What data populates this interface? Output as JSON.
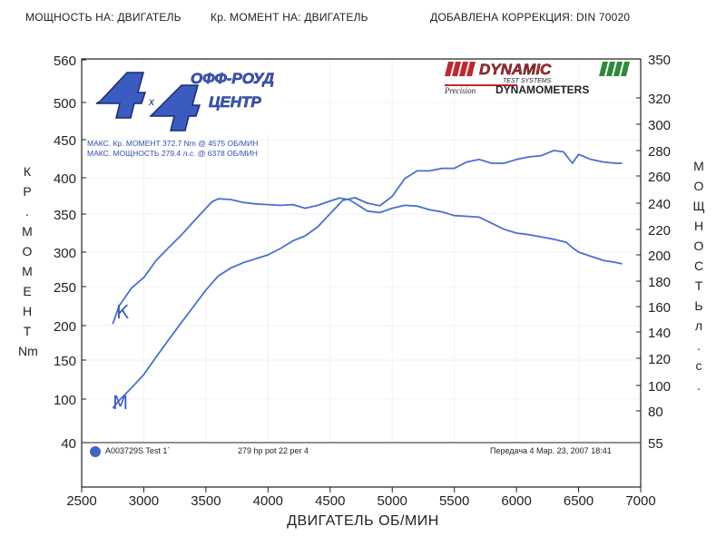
{
  "header": {
    "power_on": "МОЩНОСТЬ НА: ДВИГАТЕЛЬ",
    "torque_on": "Кр. МОМЕНТ НА: ДВИГАТЕЛЬ",
    "correction": "ДОБАВЛЕНА КОРРЕКЦИЯ: DIN 70020"
  },
  "logo_left": {
    "text_top": "ОФФ-РОУД",
    "text_bottom": "ЦЕНТР",
    "big_digit": "4",
    "cross": "x"
  },
  "logo_right": {
    "brand": "DYNAMIC",
    "sub": "TEST SYSTEMS",
    "precision": "Precision",
    "product": "DYNAMOMETERS"
  },
  "max_info": {
    "torque": "МАКС. Кр. МОМЕНТ 372.7 Nm @ 4575 ОБ/МИН",
    "power": "МАКС. МОЩНОСТЬ 279.4 л.с. @ 6378 ОБ/МИН"
  },
  "labels": {
    "y_left": [
      "К",
      "Р",
      ".",
      "М",
      "О",
      "М",
      "Е",
      "Н",
      "Т",
      "Nm"
    ],
    "y_right": [
      "М",
      "О",
      "Щ",
      "Н",
      "О",
      "С",
      "Т",
      "Ь",
      "л",
      ".",
      "с",
      "."
    ],
    "x_title": "ДВИГАТЕЛЬ ОБ/МИН",
    "hand_k": "К",
    "hand_m": "М"
  },
  "footer": {
    "run_id": "A003729S Test 1`",
    "note": "279 hp pot 22 per 4",
    "date": "Передача 4 Мар. 23, 2007 18:41"
  },
  "colors": {
    "curve": "#4a6fd0",
    "frame": "#222222",
    "grid": "#f0f1f4",
    "dot": "#3f63c6"
  },
  "chart_data": {
    "type": "line",
    "x_ticks": [
      2500,
      3000,
      3500,
      4000,
      4500,
      5000,
      5500,
      6000,
      6500,
      7000
    ],
    "y_left_ticks": [
      40,
      100,
      150,
      200,
      250,
      300,
      350,
      400,
      450,
      500,
      560
    ],
    "y_right_ticks": [
      55,
      80,
      100,
      120,
      140,
      160,
      180,
      200,
      220,
      240,
      260,
      280,
      300,
      320,
      350
    ],
    "xlim": [
      2500,
      7000
    ],
    "y_left_range": [
      40,
      560
    ],
    "y_right_range": [
      55,
      350
    ],
    "series": [
      {
        "name": "К",
        "axis": "left",
        "x": [
          2750,
          2800,
          2900,
          3000,
          3100,
          3200,
          3300,
          3400,
          3500,
          3550,
          3600,
          3700,
          3800,
          3900,
          4000,
          4100,
          4200,
          4300,
          4400,
          4500,
          4575,
          4650,
          4700,
          4800,
          4900,
          5000,
          5100,
          5200,
          5300,
          5400,
          5500,
          5600,
          5700,
          5800,
          5900,
          6000,
          6100,
          6200,
          6300,
          6400,
          6450,
          6500,
          6600,
          6700,
          6800,
          6850
        ],
        "y": [
          202,
          225,
          248,
          263,
          288,
          306,
          322,
          340,
          358,
          367,
          371,
          370,
          366,
          364,
          363,
          362,
          363,
          358,
          362,
          368,
          372,
          370,
          365,
          354,
          352,
          358,
          362,
          361,
          356,
          353,
          348,
          347,
          346,
          338,
          330,
          325,
          323,
          320,
          317,
          313,
          306,
          300,
          294,
          288,
          285,
          283
        ]
      },
      {
        "name": "М",
        "axis": "right",
        "x": [
          2750,
          2800,
          2900,
          3000,
          3100,
          3200,
          3300,
          3400,
          3500,
          3600,
          3700,
          3800,
          3900,
          4000,
          4100,
          4200,
          4300,
          4400,
          4500,
          4600,
          4700,
          4800,
          4900,
          5000,
          5100,
          5200,
          5300,
          5400,
          5500,
          5600,
          5700,
          5800,
          5900,
          6000,
          6100,
          6200,
          6300,
          6378,
          6450,
          6500,
          6600,
          6700,
          6800,
          6850
        ],
        "y": [
          82,
          88,
          98,
          108,
          121,
          134,
          147,
          160,
          173,
          184,
          190,
          194,
          197,
          200,
          205,
          211,
          215,
          222,
          232,
          242,
          244,
          240,
          238,
          245,
          258,
          264,
          264,
          266,
          266,
          271,
          273,
          270,
          270,
          273,
          275,
          276,
          280,
          279,
          270,
          277,
          273,
          271,
          270,
          270
        ]
      }
    ]
  }
}
